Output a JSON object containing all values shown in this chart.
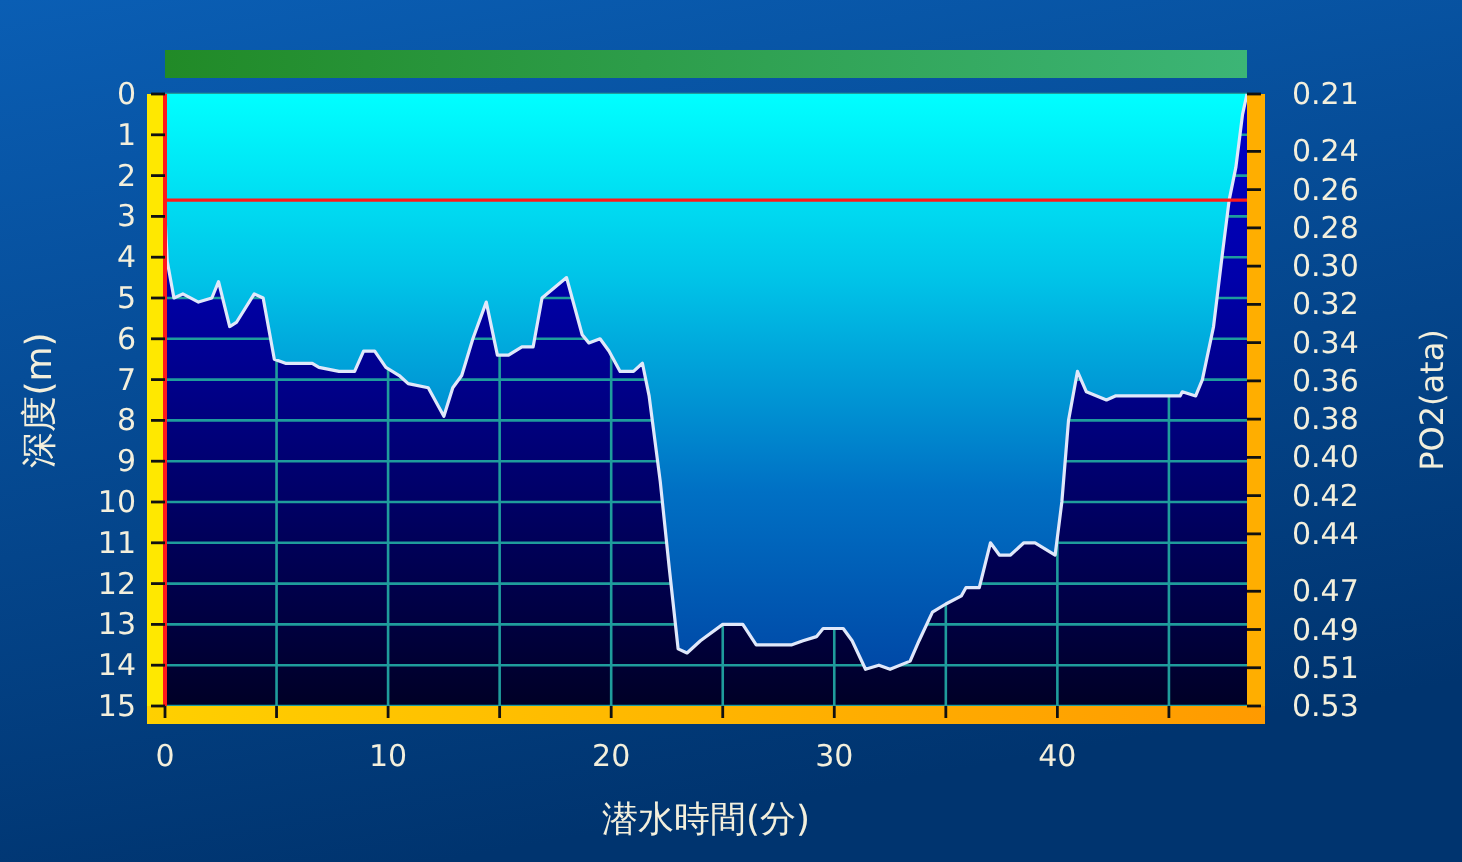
{
  "chart_data": {
    "type": "area",
    "xlabel": "潜水時間(分)",
    "ylabel": "深度(m)",
    "y2label": "PO2(ata)",
    "color": "#e0e8fa",
    "x": [
      0,
      0.1,
      0.4,
      0.8,
      1.5,
      2.1,
      2.4,
      2.9,
      3.2,
      4.0,
      4.4,
      4.9,
      5.4,
      6.6,
      6.9,
      7.8,
      8.5,
      8.9,
      9.4,
      9.9,
      10.5,
      10.9,
      11.8,
      12.5,
      12.9,
      13.3,
      13.8,
      14.4,
      14.9,
      15.4,
      16.0,
      16.5,
      16.9,
      18.0,
      18.7,
      19.0,
      19.5,
      19.9,
      20.4,
      21.0,
      21.4,
      21.7,
      22.2,
      22.6,
      23.0,
      23.4,
      24.0,
      25.0,
      25.9,
      26.5,
      28.1,
      28.6,
      29.2,
      29.5,
      30.4,
      30.8,
      31.4,
      32.0,
      32.5,
      33.4,
      33.8,
      34.4,
      35.0,
      35.7,
      35.9,
      36.5,
      37.0,
      37.4,
      37.9,
      38.5,
      39.0,
      39.9,
      40.2,
      40.5,
      40.9,
      41.3,
      42.2,
      42.6,
      45.5,
      45.6,
      46.2,
      46.5,
      47.0,
      47.4,
      47.7,
      48.0,
      48.3,
      48.5
    ],
    "values": [
      3.0,
      4.1,
      5.0,
      4.9,
      5.1,
      5.0,
      4.6,
      5.7,
      5.6,
      4.9,
      5.0,
      6.5,
      6.6,
      6.6,
      6.7,
      6.8,
      6.8,
      6.3,
      6.3,
      6.7,
      6.9,
      7.1,
      7.2,
      7.9,
      7.2,
      6.9,
      6.0,
      5.1,
      6.4,
      6.4,
      6.2,
      6.2,
      5.0,
      4.5,
      5.9,
      6.1,
      6.0,
      6.3,
      6.8,
      6.8,
      6.6,
      7.4,
      9.5,
      11.6,
      13.6,
      13.7,
      13.4,
      13.0,
      13.0,
      13.5,
      13.5,
      13.4,
      13.3,
      13.1,
      13.1,
      13.4,
      14.1,
      14.0,
      14.1,
      13.9,
      13.4,
      12.7,
      12.5,
      12.3,
      12.1,
      12.1,
      11.0,
      11.3,
      11.3,
      11.0,
      11.0,
      11.3,
      10.0,
      8.0,
      6.8,
      7.3,
      7.5,
      7.4,
      7.4,
      7.3,
      7.4,
      7.0,
      5.7,
      3.9,
      2.6,
      1.8,
      0.5,
      0.0
    ],
    "xlim": [
      0,
      48.5
    ],
    "xticks": [
      0,
      {
        "value": 5,
        "label": null
      },
      10,
      {
        "value": 15,
        "label": null
      },
      20,
      {
        "value": 25,
        "label": null
      },
      30,
      {
        "value": 35,
        "label": null
      },
      40,
      {
        "value": 45,
        "label": null
      }
    ],
    "ylim": [
      15,
      0
    ],
    "yticks": [
      0,
      1,
      2,
      3,
      4,
      5,
      6,
      7,
      8,
      9,
      10,
      11,
      12,
      13,
      14,
      15
    ],
    "y2lim": [
      0.53,
      0.21
    ],
    "y2ticks": [
      0.21,
      0.24,
      0.26,
      0.28,
      {
        "value": 0.3,
        "label": "0.30"
      },
      0.32,
      0.34,
      0.36,
      0.38,
      {
        "value": 0.4,
        "label": "0.40"
      },
      0.42,
      0.44,
      0.47,
      0.49,
      0.51,
      0.53
    ],
    "ref_lines": [
      {
        "axis": "y",
        "value": 2.6,
        "color": "#ff1a1a"
      }
    ],
    "grid": true
  }
}
